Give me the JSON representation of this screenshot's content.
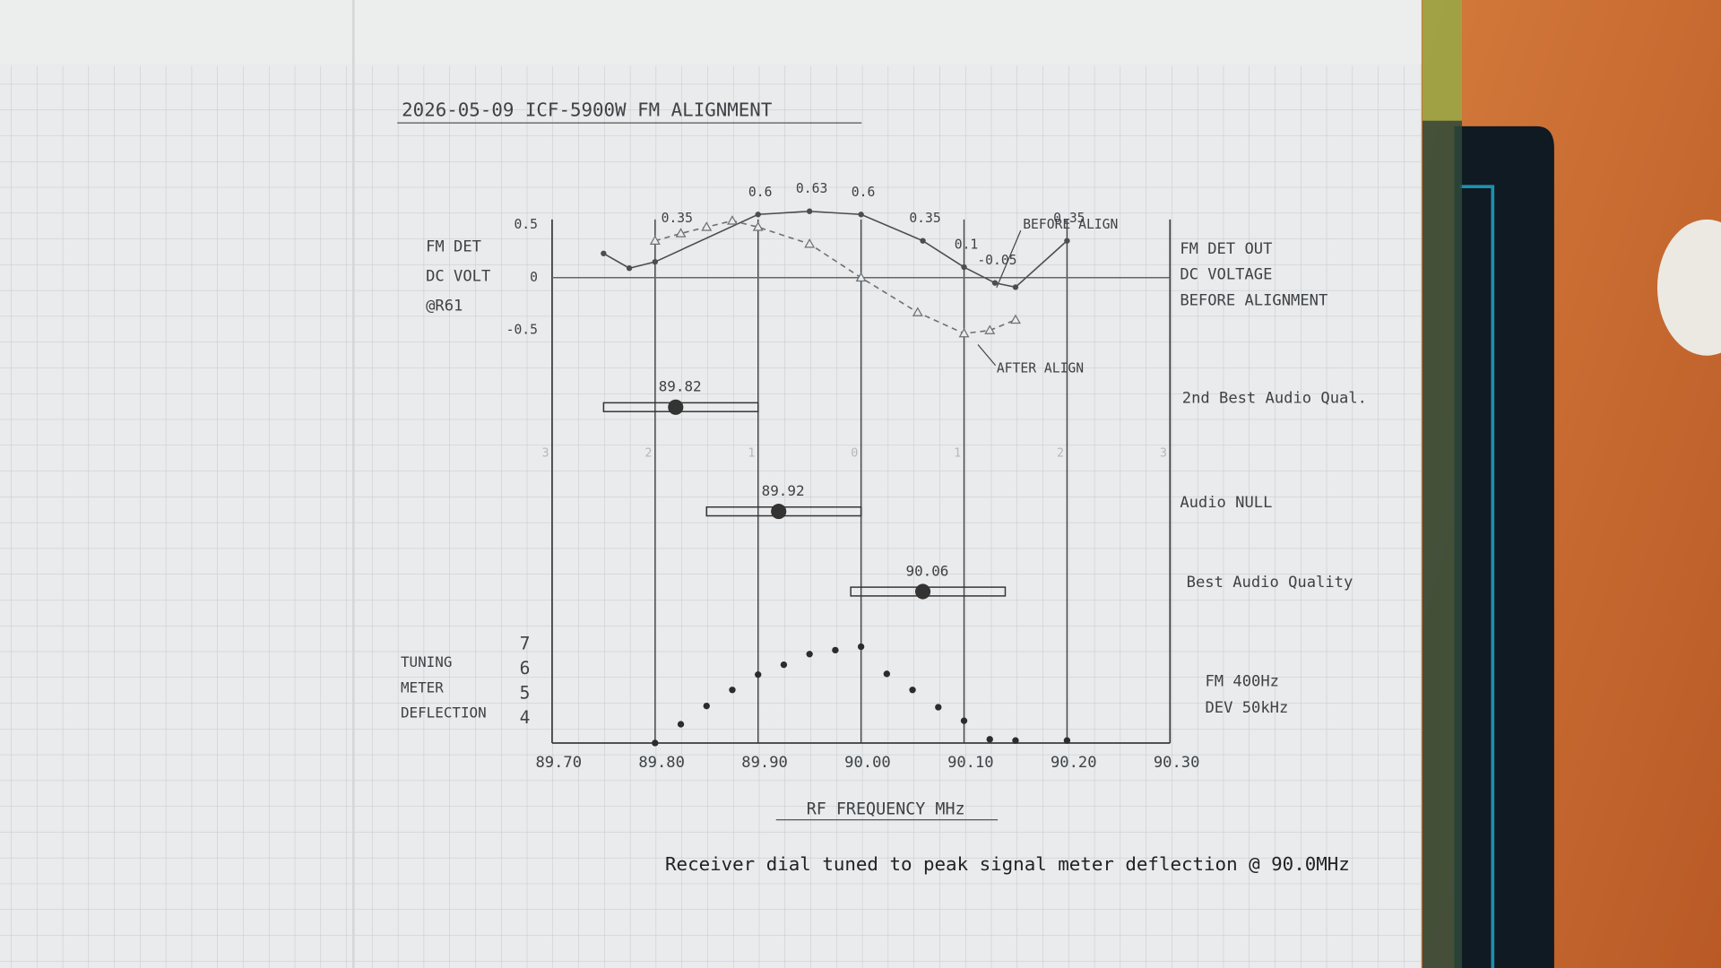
{
  "title": "2026-05-09 ICF-5900W FM ALIGNMENT",
  "footnote": "Receiver dial tuned to peak signal meter deflection @ 90.0MHz",
  "chart_data": [
    {
      "type": "line",
      "ylabel": [
        "FM DET",
        "DC VOLT",
        "@R61"
      ],
      "side_label": [
        "FM DET OUT",
        "DC VOLTAGE",
        "BEFORE ALIGNMENT"
      ],
      "ylim": [
        -0.5,
        0.5
      ],
      "yticks": [
        0.5,
        0,
        -0.5
      ],
      "series": [
        {
          "name": "BEFORE ALIGN",
          "color": "#4a4e52",
          "marker": "dot",
          "dashed": false,
          "x": [
            89.75,
            89.775,
            89.8,
            89.9,
            89.95,
            90.0,
            90.06,
            90.1,
            90.13,
            90.15,
            90.2
          ],
          "values": [
            0.23,
            0.09,
            0.15,
            0.6,
            0.63,
            0.6,
            0.35,
            0.1,
            -0.05,
            -0.09,
            0.35
          ],
          "value_labels": [
            null,
            null,
            null,
            "0.6",
            "0.63",
            "0.6",
            "0.35",
            "0.1",
            "-0.05",
            null,
            "0.35"
          ]
        },
        {
          "name": "AFTER ALIGN",
          "color": "#6b7075",
          "marker": "triangle",
          "dashed": true,
          "x": [
            89.8,
            89.825,
            89.85,
            89.875,
            89.9,
            89.95,
            90.0,
            90.055,
            90.1,
            90.125,
            90.15
          ],
          "values": [
            0.35,
            0.42,
            0.48,
            0.54,
            0.48,
            0.32,
            0,
            -0.33,
            -0.53,
            -0.5,
            -0.4
          ],
          "value_labels": [
            "0.35",
            null,
            null,
            null,
            null,
            null,
            null,
            null,
            null,
            null,
            null
          ]
        }
      ]
    },
    {
      "type": "range",
      "categories": [
        "2nd Best Audio Qual.",
        "Audio NULL",
        "Best Audio Quality"
      ],
      "values": [
        89.82,
        89.92,
        90.06
      ],
      "low": [
        89.75,
        89.85,
        89.99
      ],
      "high": [
        89.9,
        90.0,
        90.14
      ],
      "offset_scale": [
        3,
        2,
        1,
        0,
        1,
        2,
        3
      ]
    },
    {
      "type": "scatter",
      "ylabel": [
        "TUNING",
        "METER",
        "DEFLECTION"
      ],
      "side_label": [
        "FM 400Hz",
        "DEV 50kHz"
      ],
      "xlabel": "RF FREQUENCY MHz",
      "xlim": [
        89.7,
        90.3
      ],
      "xticks": [
        {
          "value": 89.7,
          "label": "89.70"
        },
        {
          "value": 89.8,
          "label": "89.80"
        },
        {
          "value": 89.9,
          "label": "89.90"
        },
        {
          "value": 90,
          "label": "90.00"
        },
        {
          "value": 90.1,
          "label": "90.10"
        },
        {
          "value": 90.2,
          "label": "90.20"
        },
        {
          "value": 90.3,
          "label": "90.30"
        }
      ],
      "ylim": [
        3,
        7
      ],
      "yticks": [
        7,
        6,
        5,
        4
      ],
      "grid": true,
      "color": "#2a2d30",
      "x": [
        89.8,
        89.825,
        89.85,
        89.875,
        89.9,
        89.925,
        89.95,
        89.975,
        90.0,
        90.025,
        90.05,
        90.075,
        90.1,
        90.125,
        90.15,
        90.2
      ],
      "values": [
        3.0,
        3.76,
        4.5,
        5.15,
        5.77,
        6.17,
        6.6,
        6.76,
        6.9,
        5.8,
        5.15,
        4.45,
        3.9,
        3.15,
        3.1,
        3.1
      ]
    }
  ]
}
